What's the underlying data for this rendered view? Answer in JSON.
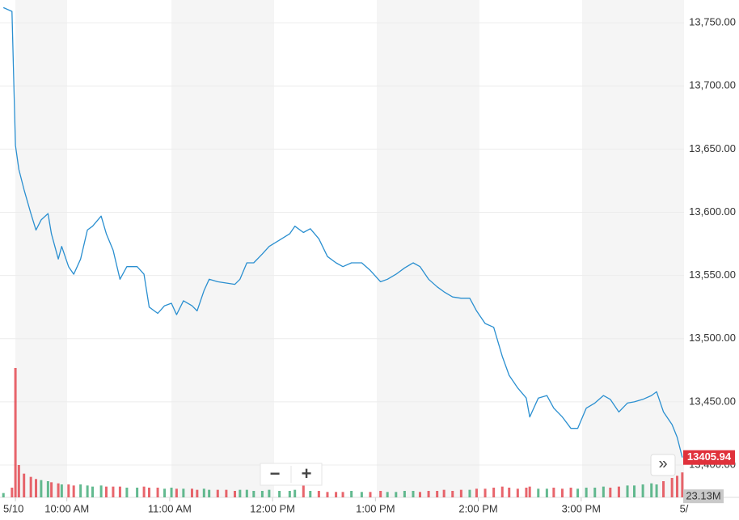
{
  "chart_data": {
    "type": "line",
    "x": [
      "09:23",
      "09:28",
      "09:30",
      "09:32",
      "09:35",
      "09:39",
      "09:42",
      "09:45",
      "09:49",
      "09:51",
      "09:55",
      "09:57",
      "10:01",
      "10:04",
      "10:08",
      "10:12",
      "10:15",
      "10:20",
      "10:23",
      "10:27",
      "10:31",
      "10:35",
      "10:41",
      "10:45",
      "10:48",
      "10:53",
      "10:57",
      "11:01",
      "11:04",
      "11:08",
      "11:13",
      "11:16",
      "11:20",
      "11:23",
      "11:28",
      "11:33",
      "11:38",
      "11:41",
      "11:45",
      "11:49",
      "11:54",
      "11:58",
      "12:04",
      "12:10",
      "12:13",
      "12:18",
      "12:22",
      "12:27",
      "12:32",
      "12:37",
      "12:41",
      "12:46",
      "12:52",
      "12:57",
      "13:03",
      "13:07",
      "13:12",
      "13:17",
      "13:22",
      "13:26",
      "13:31",
      "13:36",
      "13:40",
      "13:45",
      "13:50",
      "13:55",
      "13:59",
      "14:04",
      "14:09",
      "14:14",
      "14:18",
      "14:23",
      "14:28",
      "14:30",
      "14:35",
      "14:40",
      "14:44",
      "14:49",
      "14:54",
      "14:58",
      "15:03",
      "15:08",
      "15:13",
      "15:17",
      "15:22",
      "15:27",
      "15:31",
      "15:36",
      "15:41",
      "15:44",
      "15:48",
      "15:53",
      "15:56",
      "15:59"
    ],
    "series": [
      {
        "color": "#2a8fd0",
        "values": [
          13762,
          13759,
          13653,
          13634,
          13618,
          13599,
          13586,
          13594,
          13599,
          13583,
          13563,
          13573,
          13557,
          13551,
          13563,
          13586,
          13589,
          13597,
          13583,
          13570,
          13547,
          13557,
          13557,
          13551,
          13525,
          13520,
          13526,
          13528,
          13519,
          13530,
          13526,
          13522,
          13538,
          13547,
          13545,
          13544,
          13543,
          13547,
          13560,
          13560,
          13567,
          13573,
          13578,
          13583,
          13589,
          13584,
          13587,
          13579,
          13565,
          13560,
          13557,
          13560,
          13560,
          13554,
          13545,
          13547,
          13551,
          13556,
          13560,
          13557,
          13547,
          13541,
          13537,
          13533,
          13532,
          13532,
          13522,
          13512,
          13509,
          13486,
          13471,
          13461,
          13453,
          13438,
          13453,
          13455,
          13445,
          13438,
          13429,
          13429,
          13445,
          13449,
          13455,
          13452,
          13442,
          13449,
          13450,
          13452,
          13455,
          13458,
          13442,
          13432,
          13422,
          13405.94
        ]
      }
    ],
    "volume": {
      "values": [
        4000000,
        9000000,
        120000000,
        30000000,
        22000000,
        19000000,
        17000000,
        16000000,
        15000000,
        14000000,
        13000000,
        12000000,
        12000000,
        11000000,
        12000000,
        11000000,
        10000000,
        11000000,
        10000000,
        10000000,
        10000000,
        9000000,
        9000000,
        10000000,
        9000000,
        9000000,
        8000000,
        9000000,
        8000000,
        8000000,
        8000000,
        7000000,
        8000000,
        7000000,
        7000000,
        7000000,
        6000000,
        7000000,
        7000000,
        6000000,
        6000000,
        7000000,
        6000000,
        6000000,
        7000000,
        11000000,
        6000000,
        6000000,
        5000000,
        5000000,
        5000000,
        6000000,
        5000000,
        5000000,
        6000000,
        5000000,
        5000000,
        6000000,
        6000000,
        5000000,
        6000000,
        6000000,
        7000000,
        6000000,
        7000000,
        7000000,
        8000000,
        8000000,
        9000000,
        10000000,
        9000000,
        8000000,
        9000000,
        10000000,
        8000000,
        8000000,
        9000000,
        8000000,
        9000000,
        8000000,
        9000000,
        9000000,
        10000000,
        9000000,
        10000000,
        11000000,
        11000000,
        12000000,
        13000000,
        12000000,
        15000000,
        18000000,
        20000000,
        23130000
      ],
      "last_label": "23.13M",
      "up_color": "#2fa36b",
      "down_color": "#e0313b"
    },
    "xlim": [
      "09:21",
      "16:00"
    ],
    "xticks": [
      {
        "value": "09:30",
        "label": "5/10"
      },
      {
        "value": "10:00",
        "label": "10:00 AM"
      },
      {
        "value": "11:00",
        "label": "11:00 AM"
      },
      {
        "value": "12:00",
        "label": "12:00 PM"
      },
      {
        "value": "13:00",
        "label": "1:00 PM"
      },
      {
        "value": "14:00",
        "label": "2:00 PM"
      },
      {
        "value": "15:00",
        "label": "3:00 PM"
      },
      {
        "value": "16:00",
        "label": "5/"
      }
    ],
    "ylim": [
      13400,
      13768
    ],
    "yticks": [
      {
        "value": 13400,
        "label": "13,400.00"
      },
      {
        "value": 13450,
        "label": "13,450.00"
      },
      {
        "value": 13500,
        "label": "13,500.00"
      },
      {
        "value": 13550,
        "label": "13,550.00"
      },
      {
        "value": 13600,
        "label": "13,600.00"
      },
      {
        "value": 13650,
        "label": "13,650.00"
      },
      {
        "value": 13700,
        "label": "13,700.00"
      },
      {
        "value": 13750,
        "label": "13,750.00"
      }
    ],
    "grid": true,
    "last_color": "#e0313b",
    "controls": {
      "zoom_out": "−",
      "zoom_in": "+",
      "expand": "»"
    }
  }
}
